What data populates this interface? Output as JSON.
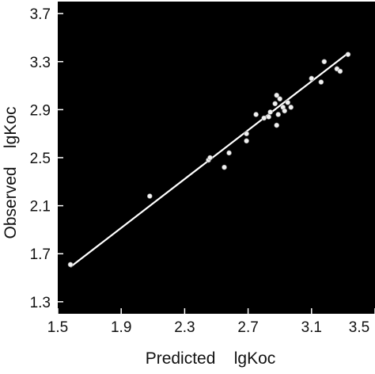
{
  "chart_data": {
    "type": "scatter",
    "title": "",
    "xlabel": "Predicted    lgKoc",
    "ylabel": "Observed    lgKoc",
    "xlim": [
      1.5,
      3.5
    ],
    "ylim": [
      1.2,
      3.8
    ],
    "x_ticks": [
      "1.5",
      "1.9",
      "2.3",
      "2.7",
      "3.1",
      "3.5"
    ],
    "y_ticks": [
      "1.3",
      "1.7",
      "2.1",
      "2.5",
      "2.9",
      "3.3",
      "3.7"
    ],
    "grid": false,
    "legend": "none",
    "series": [
      {
        "points": [
          {
            "x": 1.58,
            "y": 1.61
          },
          {
            "x": 2.08,
            "y": 2.18
          },
          {
            "x": 2.45,
            "y": 2.48
          },
          {
            "x": 2.46,
            "y": 2.5
          },
          {
            "x": 2.55,
            "y": 2.42
          },
          {
            "x": 2.58,
            "y": 2.54
          },
          {
            "x": 2.69,
            "y": 2.64
          },
          {
            "x": 2.69,
            "y": 2.7
          },
          {
            "x": 2.75,
            "y": 2.86
          },
          {
            "x": 2.8,
            "y": 2.83
          },
          {
            "x": 2.83,
            "y": 2.84
          },
          {
            "x": 2.84,
            "y": 2.88
          },
          {
            "x": 2.87,
            "y": 2.95
          },
          {
            "x": 2.88,
            "y": 3.02
          },
          {
            "x": 2.88,
            "y": 2.77
          },
          {
            "x": 2.89,
            "y": 2.86
          },
          {
            "x": 2.9,
            "y": 2.99
          },
          {
            "x": 2.92,
            "y": 2.92
          },
          {
            "x": 2.93,
            "y": 2.89
          },
          {
            "x": 2.95,
            "y": 2.96
          },
          {
            "x": 2.97,
            "y": 2.92
          },
          {
            "x": 3.1,
            "y": 3.16
          },
          {
            "x": 3.16,
            "y": 3.13
          },
          {
            "x": 3.18,
            "y": 3.3
          },
          {
            "x": 3.26,
            "y": 3.24
          },
          {
            "x": 3.28,
            "y": 3.22
          },
          {
            "x": 3.33,
            "y": 3.36
          }
        ]
      }
    ],
    "fit_line": {
      "x": [
        1.58,
        3.33
      ],
      "y": [
        1.59,
        3.37
      ]
    },
    "colors": {
      "plot_background": "#000000",
      "points": "#f2f2f2",
      "fit_line": "#ffffff",
      "text": "#111111",
      "page_background": "#ffffff"
    }
  }
}
